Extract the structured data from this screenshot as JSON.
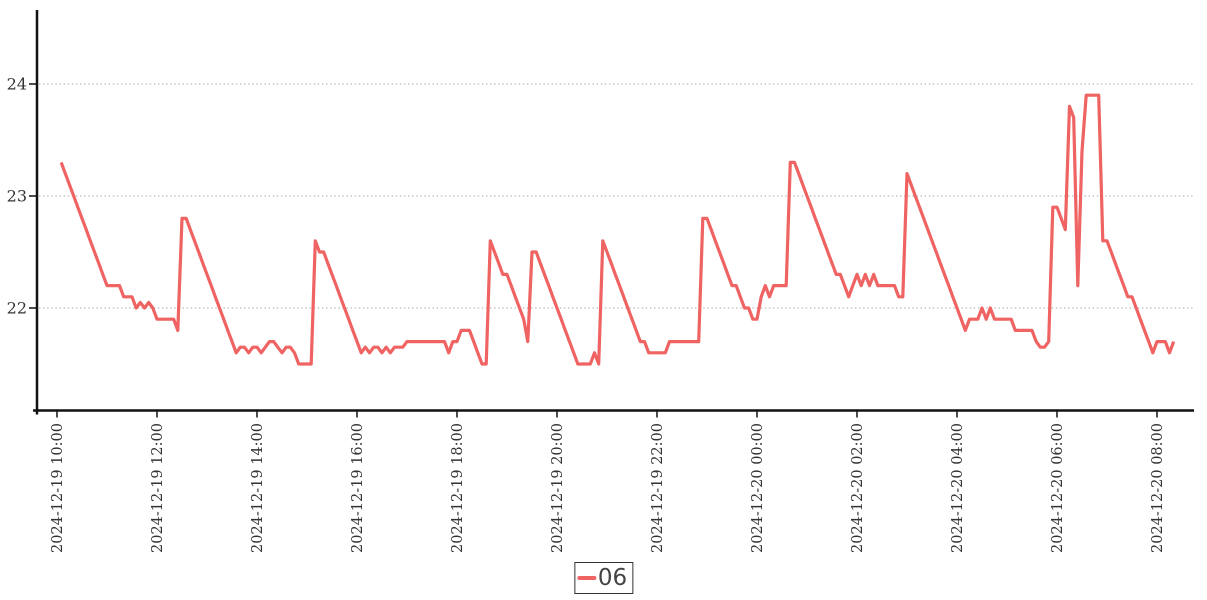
{
  "colors": {
    "background": "#ffffff",
    "axis": "#111111",
    "grid": "#aaaaaa",
    "tick_label": "#333333",
    "series_06": "#ef6363",
    "legend_border": "#333333",
    "legend_text": "#444444"
  },
  "chart_data": {
    "type": "line",
    "title": "",
    "xlabel": "",
    "ylabel": "",
    "grid": "horizontal-dotted",
    "y_ticks": [
      22,
      23,
      24
    ],
    "ylim": [
      21.1,
      24.66
    ],
    "x_ticks": [
      "2024-12-19 10:00",
      "2024-12-19 12:00",
      "2024-12-19 14:00",
      "2024-12-19 16:00",
      "2024-12-19 18:00",
      "2024-12-19 20:00",
      "2024-12-19 22:00",
      "2024-12-20 00:00",
      "2024-12-20 02:00",
      "2024-12-20 04:00",
      "2024-12-20 06:00",
      "2024-12-20 08:00"
    ],
    "legend": {
      "position": "bottom-center",
      "items": [
        {
          "label": "06",
          "color": "#ef6363"
        }
      ]
    },
    "series": [
      {
        "name": "06",
        "color": "#ef6363",
        "start": "2024-12-19 10:05",
        "end": "2024-12-20 08:20",
        "interval_minutes": 5,
        "values": [
          23.3,
          23.2,
          23.1,
          23.0,
          22.9,
          22.8,
          22.7,
          22.6,
          22.5,
          22.4,
          22.3,
          22.2,
          22.2,
          22.2,
          22.2,
          22.1,
          22.1,
          22.1,
          22.0,
          22.05,
          22.0,
          22.05,
          22.0,
          21.9,
          21.9,
          21.9,
          21.9,
          21.9,
          21.8,
          22.8,
          22.8,
          22.7,
          22.6,
          22.5,
          22.4,
          22.3,
          22.2,
          22.1,
          22.0,
          21.9,
          21.8,
          21.7,
          21.6,
          21.65,
          21.65,
          21.6,
          21.65,
          21.65,
          21.6,
          21.65,
          21.7,
          21.7,
          21.65,
          21.6,
          21.65,
          21.65,
          21.6,
          21.5,
          21.5,
          21.5,
          21.5,
          22.6,
          22.5,
          22.5,
          22.4,
          22.3,
          22.2,
          22.1,
          22.0,
          21.9,
          21.8,
          21.7,
          21.6,
          21.65,
          21.6,
          21.65,
          21.65,
          21.6,
          21.65,
          21.6,
          21.65,
          21.65,
          21.65,
          21.7,
          21.7,
          21.7,
          21.7,
          21.7,
          21.7,
          21.7,
          21.7,
          21.7,
          21.7,
          21.6,
          21.7,
          21.7,
          21.8,
          21.8,
          21.8,
          21.7,
          21.6,
          21.5,
          21.5,
          22.6,
          22.5,
          22.4,
          22.3,
          22.3,
          22.2,
          22.1,
          22.0,
          21.9,
          21.7,
          22.5,
          22.5,
          22.4,
          22.3,
          22.2,
          22.1,
          22.0,
          21.9,
          21.8,
          21.7,
          21.6,
          21.5,
          21.5,
          21.5,
          21.5,
          21.6,
          21.5,
          22.6,
          22.5,
          22.4,
          22.3,
          22.2,
          22.1,
          22.0,
          21.9,
          21.8,
          21.7,
          21.7,
          21.6,
          21.6,
          21.6,
          21.6,
          21.6,
          21.7,
          21.7,
          21.7,
          21.7,
          21.7,
          21.7,
          21.7,
          21.7,
          22.8,
          22.8,
          22.7,
          22.6,
          22.5,
          22.4,
          22.3,
          22.2,
          22.2,
          22.1,
          22.0,
          22.0,
          21.9,
          21.9,
          22.1,
          22.2,
          22.1,
          22.2,
          22.2,
          22.2,
          22.2,
          23.3,
          23.3,
          23.2,
          23.1,
          23.0,
          22.9,
          22.8,
          22.7,
          22.6,
          22.5,
          22.4,
          22.3,
          22.3,
          22.2,
          22.1,
          22.2,
          22.3,
          22.2,
          22.3,
          22.2,
          22.3,
          22.2,
          22.2,
          22.2,
          22.2,
          22.2,
          22.1,
          22.1,
          23.2,
          23.1,
          23.0,
          22.9,
          22.8,
          22.7,
          22.6,
          22.5,
          22.4,
          22.3,
          22.2,
          22.1,
          22.0,
          21.9,
          21.8,
          21.9,
          21.9,
          21.9,
          22.0,
          21.9,
          22.0,
          21.9,
          21.9,
          21.9,
          21.9,
          21.9,
          21.8,
          21.8,
          21.8,
          21.8,
          21.8,
          21.7,
          21.65,
          21.65,
          21.7,
          22.9,
          22.9,
          22.8,
          22.7,
          23.8,
          23.7,
          22.2,
          23.4,
          23.9,
          23.9,
          23.9,
          23.9,
          22.6,
          22.6,
          22.5,
          22.4,
          22.3,
          22.2,
          22.1,
          22.1,
          22.0,
          21.9,
          21.8,
          21.7,
          21.6,
          21.7,
          21.7,
          21.7,
          21.6,
          21.7
        ]
      }
    ]
  }
}
